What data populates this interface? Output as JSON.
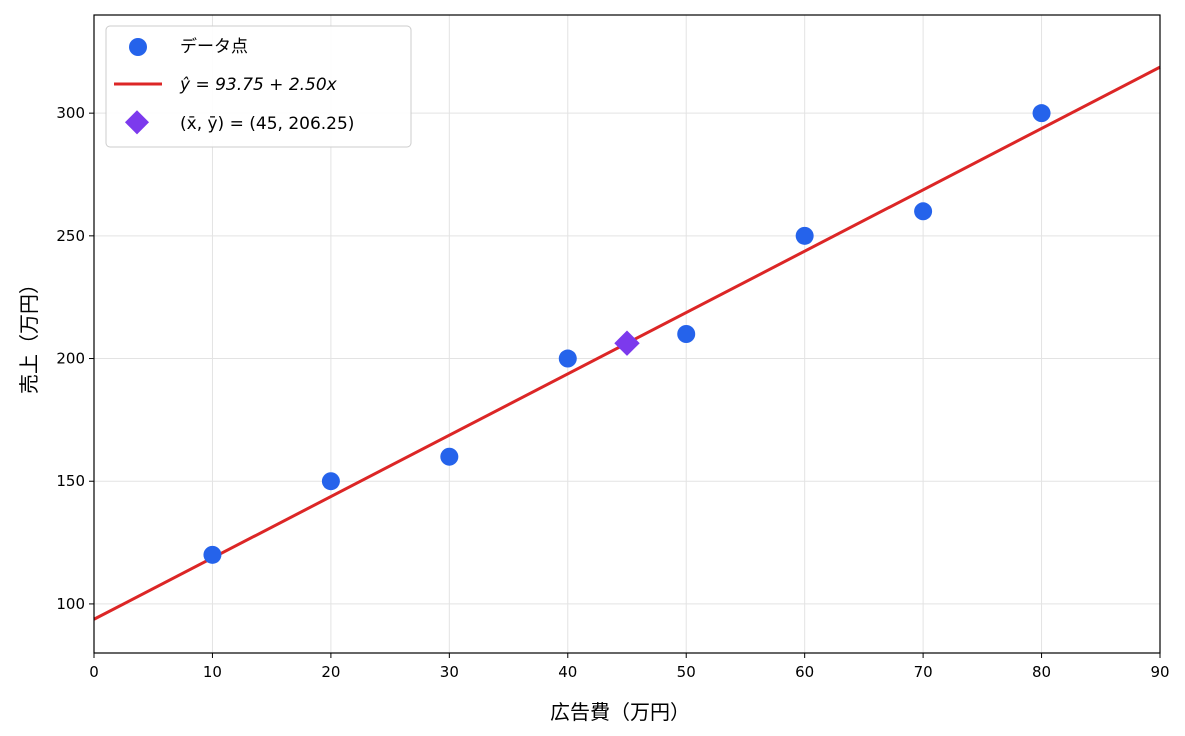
{
  "chart_data": {
    "type": "scatter",
    "xlabel": "広告費（万円）",
    "ylabel": "売上（万円）",
    "xlim": [
      0,
      90
    ],
    "ylim": [
      80,
      340
    ],
    "x_ticks": [
      0,
      10,
      20,
      30,
      40,
      50,
      60,
      70,
      80,
      90
    ],
    "y_ticks": [
      100,
      150,
      200,
      250,
      300
    ],
    "grid": true,
    "legend_position": "top-left",
    "series": [
      {
        "name": "データ点",
        "kind": "scatter",
        "color": "#2563eb",
        "points": [
          {
            "x": 10,
            "y": 120
          },
          {
            "x": 20,
            "y": 150
          },
          {
            "x": 30,
            "y": 160
          },
          {
            "x": 40,
            "y": 200
          },
          {
            "x": 50,
            "y": 210
          },
          {
            "x": 60,
            "y": 250
          },
          {
            "x": 70,
            "y": 260
          },
          {
            "x": 80,
            "y": 300
          }
        ]
      },
      {
        "name": "ŷ = 93.75 + 2.50x",
        "kind": "line",
        "color": "#dc2626",
        "intercept": 93.75,
        "slope": 2.5
      },
      {
        "name": "(x̄, ȳ) = (45, 206.25)",
        "kind": "marker",
        "color": "#7c3aed",
        "points": [
          {
            "x": 45,
            "y": 206.25
          }
        ]
      }
    ]
  }
}
